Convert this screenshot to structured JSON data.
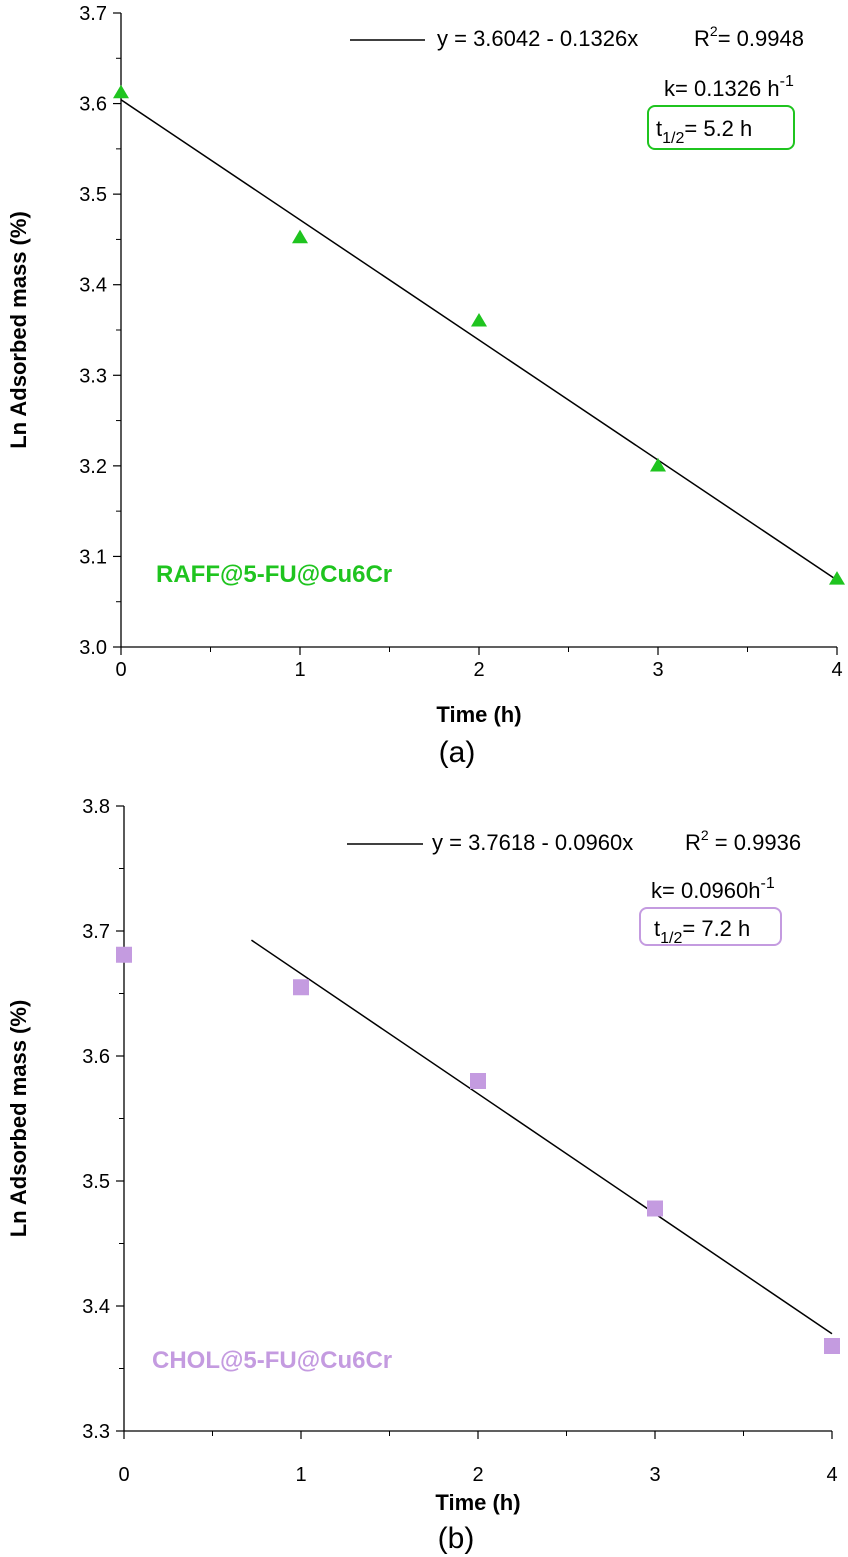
{
  "chart_data": [
    {
      "type": "scatter",
      "panel_label": "(a)",
      "xlabel": "Time (h)",
      "ylabel": "Ln Adsorbed mass (%)",
      "xlim": [
        0,
        4
      ],
      "ylim": [
        3.0,
        3.7
      ],
      "xticks": [
        0,
        1,
        2,
        3,
        4
      ],
      "yticks": [
        3.0,
        3.1,
        3.2,
        3.3,
        3.4,
        3.5,
        3.6,
        3.7
      ],
      "marker": "triangle",
      "color": "#1fc41f",
      "series": [
        {
          "x": [
            0,
            1,
            2,
            3,
            4
          ],
          "y": [
            3.612,
            3.452,
            3.36,
            3.2,
            3.075
          ]
        }
      ],
      "fit": {
        "intercept": 3.6042,
        "slope": -0.1326,
        "x_range": [
          0,
          4
        ]
      },
      "annotations": {
        "equation": "y = 3.6042 - 0.1326x",
        "r2_prefix": "R",
        "r2_sup": "2",
        "r2_value": "= 0.9948",
        "k_text": "k= 0.1326 h",
        "k_sup": "-1",
        "t_half_prefix": "t",
        "t_half_sub": "1/2",
        "t_half_value": "= 5.2 h",
        "sample_label": "RAFF@5-FU@Cu6Cr"
      }
    },
    {
      "type": "scatter",
      "panel_label": "(b)",
      "xlabel": "Time (h)",
      "ylabel": "Ln Adsorbed mass (%)",
      "xlim": [
        0,
        4
      ],
      "ylim": [
        3.3,
        3.8
      ],
      "xticks": [
        0,
        1,
        2,
        3,
        4
      ],
      "yticks": [
        3.3,
        3.4,
        3.5,
        3.6,
        3.7,
        3.8
      ],
      "marker": "square",
      "color": "#c49be0",
      "series": [
        {
          "x": [
            0,
            1,
            2,
            3,
            4
          ],
          "y": [
            3.681,
            3.655,
            3.58,
            3.478,
            3.368
          ]
        }
      ],
      "fit": {
        "intercept": 3.7618,
        "slope": -0.096,
        "x_range": [
          0.72,
          4
        ]
      },
      "annotations": {
        "equation": "y = 3.7618 - 0.0960x",
        "r2_prefix": "R",
        "r2_sup": "2",
        "r2_value": " = 0.9936",
        "k_text": "k= 0.0960h",
        "k_sup": "-1",
        "t_half_prefix": "t",
        "t_half_sub": "1/2",
        "t_half_value": "= 7.2 h",
        "sample_label": "CHOL@5-FU@Cu6Cr"
      }
    }
  ]
}
